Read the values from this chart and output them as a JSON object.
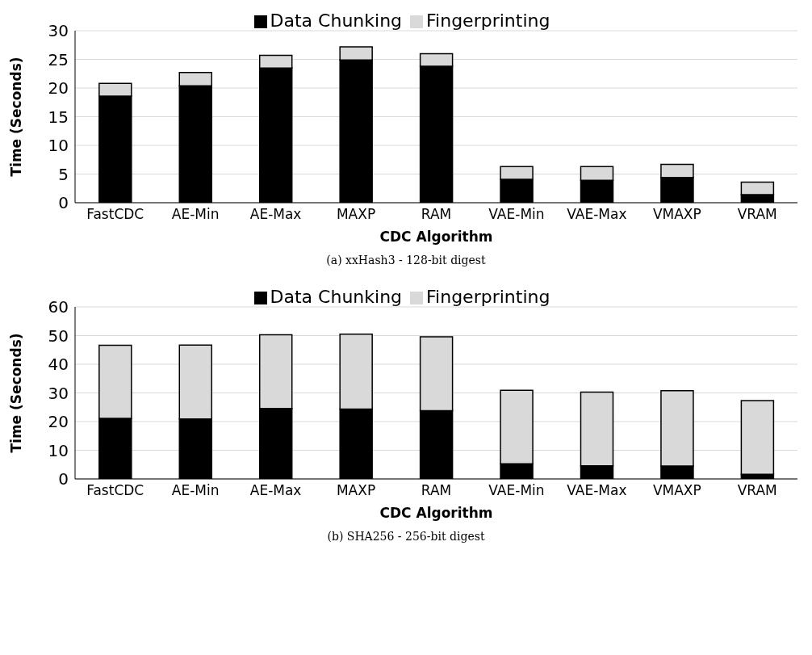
{
  "chart_data": [
    {
      "type": "bar",
      "stacked": true,
      "xlabel": "CDC Algorithm",
      "ylabel": "Time (Seconds)",
      "categories": [
        "FastCDC",
        "AE-Min",
        "AE-Max",
        "MAXP",
        "RAM",
        "VAE-Min",
        "VAE-Max",
        "VMAXP",
        "VRAM"
      ],
      "series": [
        {
          "name": "Data Chunking",
          "color": "#000000",
          "values": [
            18.6,
            20.4,
            23.5,
            24.9,
            23.8,
            4.1,
            3.9,
            4.4,
            1.4
          ]
        },
        {
          "name": "Fingerprinting",
          "color": "#d9d9d9",
          "values": [
            2.2,
            2.3,
            2.2,
            2.3,
            2.2,
            2.2,
            2.4,
            2.3,
            2.2
          ]
        }
      ],
      "ylim": [
        0,
        30
      ],
      "yticks": [
        0,
        5,
        10,
        15,
        20,
        25,
        30
      ],
      "grid": "y",
      "legend": "top",
      "annotations": [
        "(a) xxHash3 - 128-bit digest"
      ]
    },
    {
      "type": "bar",
      "stacked": true,
      "xlabel": "CDC Algorithm",
      "ylabel": "Time (Seconds)",
      "categories": [
        "FastCDC",
        "AE-Min",
        "AE-Max",
        "MAXP",
        "RAM",
        "VAE-Min",
        "VAE-Max",
        "VMAXP",
        "VRAM"
      ],
      "series": [
        {
          "name": "Data Chunking",
          "color": "#000000",
          "values": [
            21.1,
            20.9,
            24.6,
            24.4,
            23.8,
            5.3,
            4.6,
            4.5,
            1.6
          ]
        },
        {
          "name": "Fingerprinting",
          "color": "#d9d9d9",
          "values": [
            25.5,
            25.8,
            25.7,
            26.1,
            25.8,
            25.6,
            25.7,
            26.3,
            25.7
          ]
        }
      ],
      "ylim": [
        0,
        60
      ],
      "yticks": [
        0,
        10,
        20,
        30,
        40,
        50,
        60
      ],
      "grid": "y",
      "legend": "top",
      "annotations": [
        "(b) SHA256 - 256-bit digest"
      ]
    }
  ]
}
